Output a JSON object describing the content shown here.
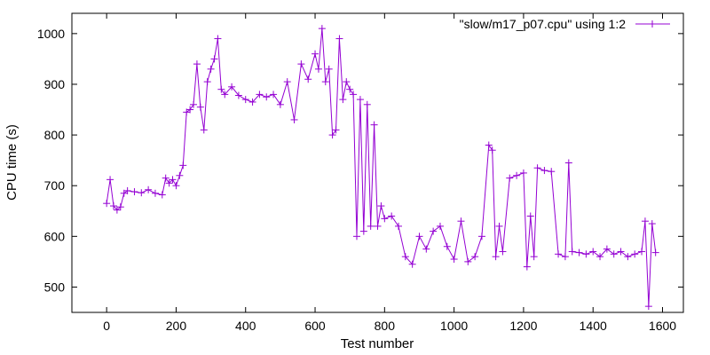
{
  "chart_data": {
    "type": "line",
    "title": "",
    "xlabel": "Test number",
    "ylabel": "CPU time (s)",
    "xlim": [
      -100,
      1660
    ],
    "ylim": [
      450,
      1040
    ],
    "xticks": [
      0,
      200,
      400,
      600,
      800,
      1000,
      1200,
      1400,
      1600
    ],
    "yticks": [
      500,
      600,
      700,
      800,
      900,
      1000
    ],
    "grid": false,
    "legend_position": "top-right",
    "series": [
      {
        "name": "\"slow/m17_p07.cpu\" using 1:2",
        "color": "#9400d3",
        "marker": "plus",
        "x": [
          0,
          10,
          20,
          30,
          40,
          50,
          60,
          80,
          100,
          120,
          140,
          160,
          170,
          180,
          190,
          200,
          210,
          220,
          230,
          240,
          250,
          260,
          270,
          280,
          290,
          300,
          310,
          320,
          330,
          340,
          360,
          380,
          400,
          420,
          440,
          460,
          480,
          500,
          520,
          540,
          560,
          580,
          600,
          610,
          620,
          630,
          640,
          650,
          660,
          670,
          680,
          690,
          700,
          710,
          720,
          730,
          740,
          750,
          760,
          770,
          780,
          790,
          800,
          820,
          840,
          860,
          880,
          900,
          920,
          940,
          960,
          980,
          1000,
          1020,
          1040,
          1060,
          1080,
          1100,
          1110,
          1120,
          1130,
          1140,
          1160,
          1180,
          1200,
          1210,
          1220,
          1230,
          1240,
          1260,
          1280,
          1300,
          1320,
          1330,
          1340,
          1360,
          1380,
          1400,
          1420,
          1440,
          1460,
          1480,
          1500,
          1520,
          1540,
          1550,
          1560,
          1570,
          1580
        ],
        "y": [
          665,
          712,
          660,
          652,
          658,
          685,
          690,
          688,
          686,
          692,
          685,
          682,
          715,
          705,
          712,
          700,
          720,
          740,
          845,
          850,
          860,
          940,
          855,
          810,
          905,
          930,
          950,
          990,
          890,
          880,
          895,
          878,
          870,
          865,
          880,
          875,
          880,
          860,
          905,
          830,
          940,
          910,
          960,
          930,
          1010,
          905,
          930,
          800,
          810,
          990,
          870,
          905,
          890,
          880,
          600,
          870,
          610,
          860,
          620,
          820,
          620,
          660,
          635,
          640,
          620,
          560,
          545,
          600,
          575,
          610,
          620,
          580,
          555,
          630,
          550,
          560,
          600,
          780,
          770,
          560,
          620,
          570,
          715,
          720,
          725,
          540,
          640,
          560,
          735,
          730,
          728,
          565,
          560,
          745,
          570,
          568,
          565,
          570,
          560,
          575,
          565,
          570,
          560,
          565,
          570,
          630,
          462,
          625,
          568
        ]
      }
    ]
  }
}
